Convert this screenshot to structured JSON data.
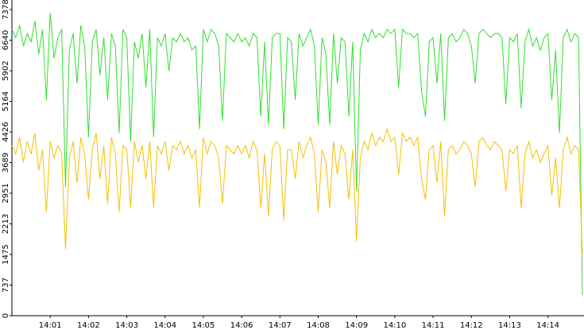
{
  "chart_data": {
    "type": "line",
    "ylim": [
      0,
      7378
    ],
    "yticks": [
      0,
      737,
      1475,
      2213,
      2951,
      3689,
      4426,
      5164,
      5902,
      6640,
      7378
    ],
    "xlim": [
      0,
      149
    ],
    "xticks": [
      {
        "value": 10,
        "label": "14:01"
      },
      {
        "value": 20,
        "label": "14:02"
      },
      {
        "value": 30,
        "label": "14:03"
      },
      {
        "value": 40,
        "label": "14:04"
      },
      {
        "value": 50,
        "label": "14:05"
      },
      {
        "value": 60,
        "label": "14:06"
      },
      {
        "value": 70,
        "label": "14:07"
      },
      {
        "value": 80,
        "label": "14:08"
      },
      {
        "value": 90,
        "label": "14:09"
      },
      {
        "value": 100,
        "label": "14:10"
      },
      {
        "value": 110,
        "label": "14:11"
      },
      {
        "value": 120,
        "label": "14:12"
      },
      {
        "value": 130,
        "label": "14:13"
      },
      {
        "value": 140,
        "label": "14:14"
      }
    ],
    "series": [
      {
        "color": "#2ee02e",
        "values": [
          6900,
          6700,
          7000,
          6500,
          6800,
          6600,
          7100,
          6300,
          6900,
          5200,
          7300,
          6200,
          6700,
          6900,
          3100,
          6400,
          6800,
          5600,
          7000,
          6500,
          4300,
          6600,
          6900,
          5800,
          6700,
          5200,
          6800,
          6500,
          4400,
          6900,
          6700,
          4200,
          6600,
          6200,
          6800,
          5500,
          6900,
          4300,
          6700,
          6500,
          6800,
          5900,
          6700,
          6600,
          6800,
          6600,
          6700,
          6400,
          6500,
          4500,
          6900,
          6600,
          6900,
          6800,
          6500,
          4700,
          6800,
          6700,
          6600,
          6800,
          6600,
          6700,
          6500,
          6800,
          6700,
          4800,
          6600,
          4600,
          6700,
          6800,
          6800,
          4500,
          6700,
          6600,
          5200,
          6800,
          6500,
          6700,
          6900,
          6500,
          4600,
          6700,
          6300,
          4600,
          6800,
          5600,
          6700,
          6600,
          4800,
          6600,
          3000,
          6400,
          6800,
          6600,
          6900,
          6700,
          6800,
          6700,
          6900,
          6800,
          6900,
          5500,
          6900,
          6800,
          6800,
          6700,
          6800,
          5400,
          4800,
          6600,
          6700,
          5600,
          6800,
          4700,
          6700,
          6800,
          6600,
          6700,
          6900,
          6800,
          6500,
          5600,
          6800,
          6900,
          6800,
          6700,
          6800,
          6800,
          6700,
          5100,
          6700,
          6600,
          6800,
          5000,
          6600,
          6900,
          6500,
          6700,
          6400,
          6700,
          6800,
          5200,
          6400,
          4400,
          6700,
          6900,
          6600,
          6800,
          6700,
          500
        ]
      },
      {
        "color": "#f5c000",
        "values": [
          4100,
          3900,
          4300,
          3700,
          4200,
          3900,
          4400,
          3500,
          4000,
          2500,
          4200,
          3800,
          4100,
          3900,
          1600,
          3800,
          4200,
          3200,
          4300,
          3900,
          2800,
          4000,
          4400,
          3300,
          4100,
          2700,
          4300,
          3900,
          2500,
          4100,
          4000,
          2600,
          4200,
          3700,
          4100,
          3300,
          4200,
          2600,
          4100,
          3900,
          4200,
          3500,
          4100,
          4000,
          4200,
          3900,
          4100,
          3800,
          4000,
          2600,
          4300,
          3900,
          4200,
          4100,
          3800,
          2700,
          4100,
          4000,
          3900,
          4100,
          3900,
          4100,
          3800,
          4200,
          4000,
          2600,
          3900,
          2400,
          4000,
          4200,
          4100,
          2300,
          4000,
          4000,
          3300,
          4200,
          3800,
          4100,
          4300,
          3900,
          2500,
          4000,
          3700,
          2600,
          4200,
          3400,
          4100,
          3900,
          2800,
          4000,
          1800,
          3800,
          4200,
          4000,
          4400,
          4100,
          4300,
          4200,
          4500,
          4200,
          4300,
          3400,
          4400,
          4200,
          4300,
          4100,
          4300,
          3300,
          2800,
          4000,
          4100,
          3200,
          4200,
          2400,
          4000,
          4100,
          3900,
          4000,
          4200,
          4100,
          3900,
          3100,
          4200,
          4300,
          4100,
          4000,
          4200,
          4100,
          4000,
          3000,
          4000,
          3900,
          4100,
          2600,
          3900,
          4200,
          3800,
          4000,
          3700,
          3900,
          4100,
          2900,
          3800,
          2600,
          4000,
          4300,
          3900,
          4100,
          4000,
          1500
        ]
      }
    ]
  }
}
